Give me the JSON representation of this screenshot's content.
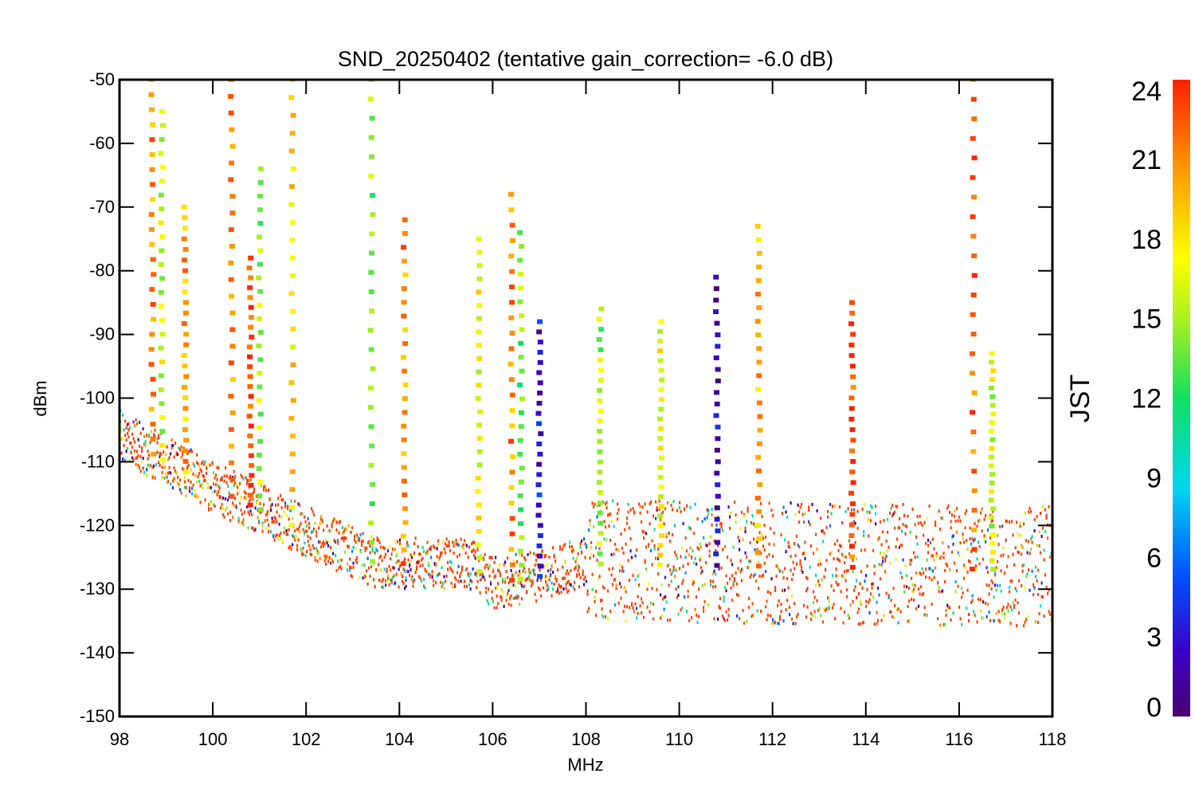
{
  "chart_data": {
    "type": "scatter",
    "title": "SND_20250402 (tentative gain_correction= -6.0 dB)",
    "xlabel": "MHz",
    "ylabel": "dBm",
    "xlim": [
      98,
      118
    ],
    "ylim": [
      -150,
      -50
    ],
    "xticks": [
      "98",
      "100",
      "102",
      "104",
      "106",
      "108",
      "110",
      "112",
      "114",
      "116",
      "118"
    ],
    "yticks": [
      "-50",
      "-60",
      "-70",
      "-80",
      "-90",
      "-100",
      "-110",
      "-120",
      "-130",
      "-140",
      "-150"
    ],
    "grid": false,
    "colorbar": {
      "title": "JST",
      "range": [
        0,
        24
      ],
      "ticks": [
        "24",
        "21",
        "18",
        "15",
        "12",
        "9",
        "6",
        "3",
        "0"
      ],
      "colormap": "rainbow"
    },
    "noise_floor": [
      {
        "x": 98.0,
        "y": -106
      },
      {
        "x": 100.0,
        "y": -114
      },
      {
        "x": 102.0,
        "y": -121
      },
      {
        "x": 103.5,
        "y": -126
      },
      {
        "x": 105.5,
        "y": -126
      },
      {
        "x": 106.0,
        "y": -129
      },
      {
        "x": 107.0,
        "y": -128
      },
      {
        "x": 107.9,
        "y": -126
      },
      {
        "x": 118.0,
        "y": -127
      }
    ],
    "peaks": [
      {
        "x": 98.7,
        "y": -50,
        "jst": 21
      },
      {
        "x": 98.9,
        "y": -55,
        "jst": 16
      },
      {
        "x": 99.4,
        "y": -70,
        "jst": 20
      },
      {
        "x": 100.4,
        "y": -50,
        "jst": 21
      },
      {
        "x": 100.8,
        "y": -78,
        "jst": 23
      },
      {
        "x": 101.0,
        "y": -64,
        "jst": 15
      },
      {
        "x": 101.7,
        "y": -50,
        "jst": 18
      },
      {
        "x": 103.4,
        "y": -50,
        "jst": 14
      },
      {
        "x": 104.1,
        "y": -72,
        "jst": 21
      },
      {
        "x": 105.7,
        "y": -75,
        "jst": 17
      },
      {
        "x": 106.4,
        "y": -68,
        "jst": 21
      },
      {
        "x": 106.6,
        "y": -74,
        "jst": 14
      },
      {
        "x": 107.0,
        "y": -88,
        "jst": 3
      },
      {
        "x": 108.3,
        "y": -86,
        "jst": 15
      },
      {
        "x": 109.6,
        "y": -88,
        "jst": 17
      },
      {
        "x": 110.8,
        "y": -81,
        "jst": 2
      },
      {
        "x": 111.7,
        "y": -73,
        "jst": 20
      },
      {
        "x": 113.7,
        "y": -85,
        "jst": 23
      },
      {
        "x": 116.3,
        "y": -50,
        "jst": 22
      },
      {
        "x": 116.7,
        "y": -93,
        "jst": 16
      }
    ]
  }
}
